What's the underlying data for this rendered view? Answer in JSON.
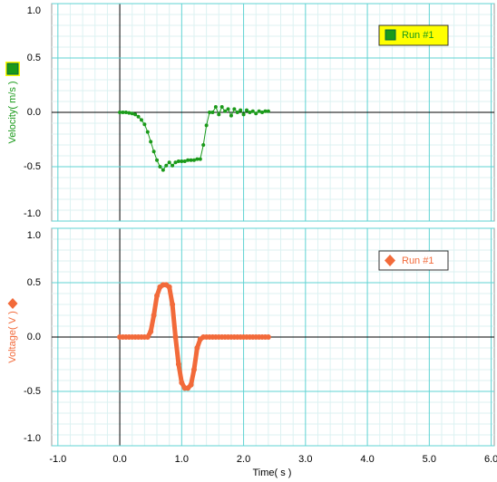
{
  "chart_data": [
    {
      "type": "line",
      "ylabel": "Velocity( m/s )",
      "x": [
        0,
        0.05,
        0.1,
        0.15,
        0.2,
        0.25,
        0.3,
        0.35,
        0.4,
        0.45,
        0.5,
        0.55,
        0.6,
        0.65,
        0.7,
        0.75,
        0.8,
        0.85,
        0.9,
        0.95,
        1.0,
        1.05,
        1.1,
        1.15,
        1.2,
        1.25,
        1.3,
        1.35,
        1.4,
        1.45,
        1.5,
        1.55,
        1.6,
        1.65,
        1.7,
        1.75,
        1.8,
        1.85,
        1.9,
        1.95,
        2.0,
        2.05,
        2.1,
        2.15,
        2.2,
        2.25,
        2.3,
        2.35,
        2.4
      ],
      "series": [
        {
          "name": "Run #1",
          "color": "#1a9a1a",
          "values": [
            0,
            0,
            0,
            -0.005,
            -0.01,
            -0.02,
            -0.04,
            -0.07,
            -0.11,
            -0.18,
            -0.27,
            -0.36,
            -0.44,
            -0.5,
            -0.53,
            -0.49,
            -0.46,
            -0.49,
            -0.46,
            -0.45,
            -0.45,
            -0.45,
            -0.44,
            -0.44,
            -0.44,
            -0.43,
            -0.43,
            -0.3,
            -0.12,
            0,
            0,
            0.05,
            -0.02,
            0.05,
            0.01,
            0.03,
            -0.03,
            0.03,
            0,
            0.02,
            -0.02,
            0.02,
            0,
            0.01,
            -0.01,
            0.01,
            0,
            0.01,
            0.01
          ]
        }
      ],
      "xlim": [
        -1.1,
        6.05
      ],
      "xticks": [
        -1,
        0,
        1,
        2,
        3,
        4,
        5,
        6
      ],
      "ylim": [
        -1,
        1
      ],
      "yticks": [
        {
          "value": -1,
          "label": "-1.0"
        },
        -0.5,
        {
          "value": 0,
          "label": "0.0"
        },
        0.5,
        {
          "value": 1,
          "label": "1.0"
        }
      ],
      "grid": true
    },
    {
      "type": "line",
      "ylabel": "Voltage( V )",
      "xlabel": "Time( s )",
      "x": [
        0,
        0.05,
        0.1,
        0.15,
        0.2,
        0.25,
        0.3,
        0.35,
        0.4,
        0.45,
        0.5,
        0.55,
        0.6,
        0.65,
        0.7,
        0.75,
        0.8,
        0.85,
        0.9,
        0.95,
        1.0,
        1.05,
        1.1,
        1.15,
        1.2,
        1.25,
        1.3,
        1.35,
        1.4,
        1.45,
        1.5,
        1.55,
        1.6,
        1.65,
        1.7,
        1.75,
        1.8,
        1.85,
        1.9,
        1.95,
        2.0,
        2.05,
        2.1,
        2.15,
        2.2,
        2.25,
        2.3,
        2.35,
        2.4
      ],
      "series": [
        {
          "name": "Run #1",
          "color": "#f26a3a",
          "values": [
            0,
            0,
            0,
            0,
            0,
            0,
            0,
            0,
            0,
            0,
            0.05,
            0.2,
            0.38,
            0.46,
            0.48,
            0.48,
            0.46,
            0.3,
            0,
            -0.25,
            -0.42,
            -0.47,
            -0.47,
            -0.44,
            -0.3,
            -0.1,
            -0.02,
            0,
            0,
            0,
            0,
            0,
            0,
            0,
            0,
            0,
            0,
            0,
            0,
            0,
            0,
            0,
            0,
            0,
            0,
            0,
            0,
            0,
            0
          ]
        }
      ],
      "xlim": [
        -1.1,
        6.05
      ],
      "xticks": [
        {
          "value": -1,
          "label": "-1.0"
        },
        {
          "value": 0,
          "label": "0.0"
        },
        {
          "value": 1,
          "label": "1.0"
        },
        {
          "value": 2,
          "label": "2.0"
        },
        {
          "value": 3,
          "label": "3.0"
        },
        {
          "value": 4,
          "label": "4.0"
        },
        {
          "value": 5,
          "label": "5.0"
        },
        {
          "value": 6,
          "label": "6.0"
        }
      ],
      "ylim": [
        -1,
        1
      ],
      "yticks": [
        {
          "value": -1,
          "label": "-1.0"
        },
        -0.5,
        {
          "value": 0,
          "label": "0.0"
        },
        0.5,
        {
          "value": 1,
          "label": "1.0"
        }
      ],
      "grid": true
    }
  ]
}
